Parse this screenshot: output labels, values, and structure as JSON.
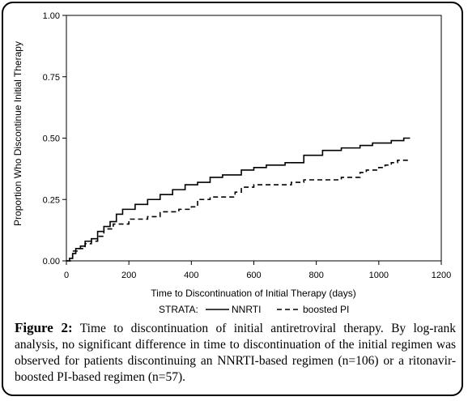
{
  "chart_data": {
    "type": "line",
    "xlabel": "Time to Discontinuation of Initial Therapy (days)",
    "ylabel": "Proportion Who Discontinue Initial Therapy",
    "xlim": [
      0,
      1200
    ],
    "ylim": [
      0,
      1
    ],
    "x_ticks": [
      "0",
      "200",
      "400",
      "600",
      "800",
      "1000",
      "1200"
    ],
    "y_ticks": [
      "0.00",
      "0.25",
      "0.50",
      "0.75",
      "1.00"
    ],
    "legend_title": "STRATA:",
    "legend_position": "bottom",
    "series": [
      {
        "name": "NNRTI",
        "style": "solid",
        "points": [
          [
            0,
            0.0
          ],
          [
            10,
            0.01
          ],
          [
            20,
            0.03
          ],
          [
            30,
            0.05
          ],
          [
            45,
            0.06
          ],
          [
            60,
            0.08
          ],
          [
            80,
            0.09
          ],
          [
            100,
            0.12
          ],
          [
            120,
            0.14
          ],
          [
            140,
            0.16
          ],
          [
            160,
            0.19
          ],
          [
            180,
            0.21
          ],
          [
            220,
            0.23
          ],
          [
            260,
            0.25
          ],
          [
            300,
            0.27
          ],
          [
            340,
            0.29
          ],
          [
            380,
            0.31
          ],
          [
            420,
            0.32
          ],
          [
            460,
            0.34
          ],
          [
            500,
            0.35
          ],
          [
            560,
            0.37
          ],
          [
            600,
            0.38
          ],
          [
            640,
            0.39
          ],
          [
            700,
            0.4
          ],
          [
            760,
            0.43
          ],
          [
            820,
            0.45
          ],
          [
            880,
            0.46
          ],
          [
            940,
            0.47
          ],
          [
            980,
            0.48
          ],
          [
            1040,
            0.49
          ],
          [
            1080,
            0.5
          ],
          [
            1100,
            0.5
          ]
        ]
      },
      {
        "name": "boosted PI",
        "style": "dashed",
        "points": [
          [
            0,
            0.0
          ],
          [
            20,
            0.04
          ],
          [
            40,
            0.05
          ],
          [
            60,
            0.07
          ],
          [
            80,
            0.08
          ],
          [
            100,
            0.1
          ],
          [
            120,
            0.13
          ],
          [
            150,
            0.15
          ],
          [
            200,
            0.17
          ],
          [
            260,
            0.18
          ],
          [
            300,
            0.2
          ],
          [
            360,
            0.21
          ],
          [
            400,
            0.22
          ],
          [
            420,
            0.25
          ],
          [
            460,
            0.26
          ],
          [
            540,
            0.28
          ],
          [
            560,
            0.3
          ],
          [
            600,
            0.31
          ],
          [
            720,
            0.32
          ],
          [
            760,
            0.33
          ],
          [
            880,
            0.34
          ],
          [
            940,
            0.36
          ],
          [
            960,
            0.37
          ],
          [
            1000,
            0.38
          ],
          [
            1020,
            0.39
          ],
          [
            1040,
            0.4
          ],
          [
            1060,
            0.41
          ],
          [
            1100,
            0.41
          ]
        ]
      }
    ]
  },
  "caption": {
    "label": "Figure 2:",
    "text": "Time to discontinuation of initial antiretroviral therapy. By log-rank analysis, no significant difference in time to discontinuation of the initial regimen was observed for patients discontinuing an NNRTI-based regimen (n=106) or a ritonavir-boosted PI-based regimen (n=57)."
  }
}
